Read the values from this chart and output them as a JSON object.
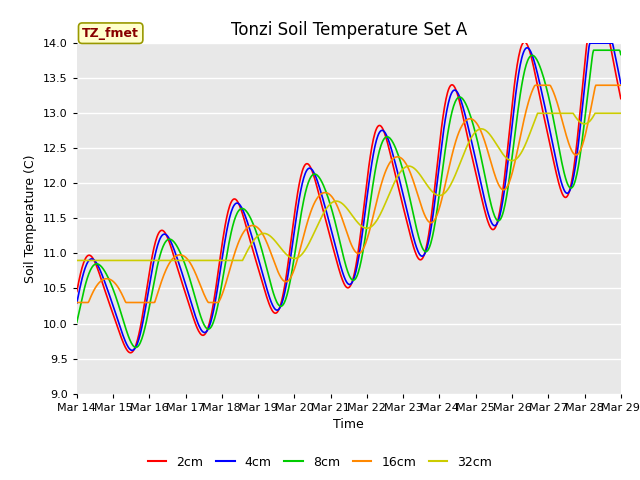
{
  "title": "Tonzi Soil Temperature Set A",
  "xlabel": "Time",
  "ylabel": "Soil Temperature (C)",
  "ylim": [
    9.0,
    14.0
  ],
  "yticks": [
    9.0,
    9.5,
    10.0,
    10.5,
    11.0,
    11.5,
    12.0,
    12.5,
    13.0,
    13.5,
    14.0
  ],
  "xtick_labels": [
    "Mar 14",
    "Mar 15",
    "Mar 16",
    "Mar 17",
    "Mar 18",
    "Mar 19",
    "Mar 20",
    "Mar 21",
    "Mar 22",
    "Mar 23",
    "Mar 24",
    "Mar 25",
    "Mar 26",
    "Mar 27",
    "Mar 28",
    "Mar 29"
  ],
  "series_colors": [
    "#ff0000",
    "#0000ff",
    "#00cc00",
    "#ff8800",
    "#cccc00"
  ],
  "series_labels": [
    "2cm",
    "4cm",
    "8cm",
    "16cm",
    "32cm"
  ],
  "legend_label": "TZ_fmet",
  "legend_bg": "#ffffcc",
  "legend_edge": "#999900",
  "bg_color": "#e8e8e8",
  "grid_color": "#ffffff",
  "title_fontsize": 12,
  "axis_label_fontsize": 9,
  "tick_fontsize": 8
}
